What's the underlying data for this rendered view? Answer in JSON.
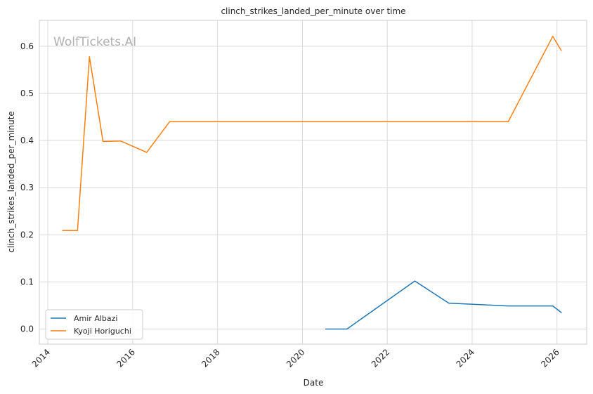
{
  "chart_data": {
    "type": "line",
    "title": "clinch_strikes_landed_per_minute over time",
    "xlabel": "Date",
    "ylabel": "clinch_strikes_landed_per_minute",
    "watermark": "WolfTickets.AI",
    "xlim": [
      2013.8,
      2026.7
    ],
    "ylim": [
      -0.032,
      0.655
    ],
    "x_ticks": [
      2014,
      2016,
      2018,
      2020,
      2022,
      2024,
      2026
    ],
    "x_tick_labels": [
      "2014",
      "2016",
      "2018",
      "2020",
      "2022",
      "2024",
      "2026"
    ],
    "y_ticks": [
      0.0,
      0.1,
      0.2,
      0.3,
      0.4,
      0.5,
      0.6
    ],
    "y_tick_labels": [
      "0.0",
      "0.1",
      "0.2",
      "0.3",
      "0.4",
      "0.5",
      "0.6"
    ],
    "grid": true,
    "legend_position": "lower-left",
    "series": [
      {
        "name": "Amir Albazi",
        "color": "#1f77b4",
        "points": [
          [
            2020.55,
            0.0
          ],
          [
            2021.05,
            0.0
          ],
          [
            2022.65,
            0.102
          ],
          [
            2023.45,
            0.055
          ],
          [
            2024.85,
            0.049
          ],
          [
            2025.9,
            0.049
          ],
          [
            2026.1,
            0.035
          ]
        ]
      },
      {
        "name": "Kyoji Horiguchi",
        "color": "#ff7f0e",
        "points": [
          [
            2014.35,
            0.209
          ],
          [
            2014.7,
            0.209
          ],
          [
            2014.98,
            0.578
          ],
          [
            2015.3,
            0.398
          ],
          [
            2015.72,
            0.399
          ],
          [
            2016.33,
            0.375
          ],
          [
            2016.87,
            0.44
          ],
          [
            2024.85,
            0.44
          ],
          [
            2025.9,
            0.621
          ],
          [
            2026.1,
            0.591
          ]
        ]
      }
    ]
  }
}
